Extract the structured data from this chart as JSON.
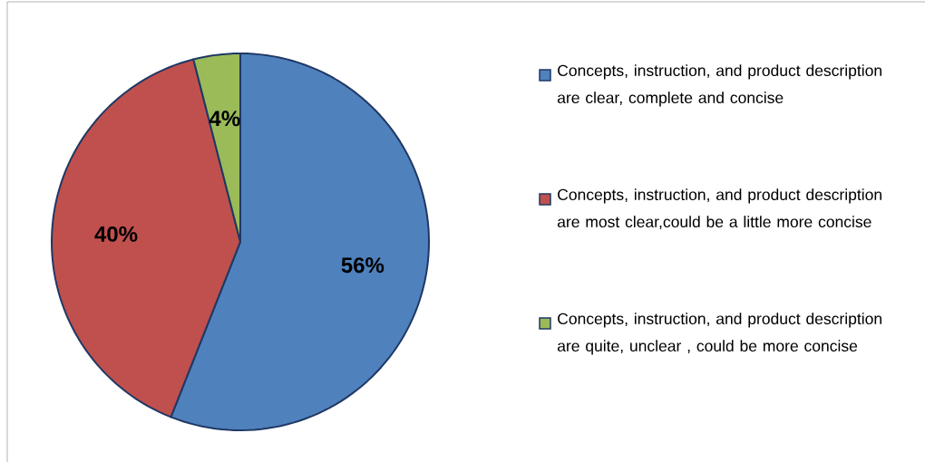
{
  "chart_data": {
    "type": "pie",
    "categories": [
      "Concepts, instruction, and product description are clear, complete and concise",
      "Concepts, instruction, and product description are most clear,could be a little more concise",
      "Concepts, instruction, and product description are quite, unclear , could be more concise"
    ],
    "values": [
      56,
      40,
      4
    ],
    "colors": [
      "#4f81bd",
      "#c0504d",
      "#9bbb59"
    ],
    "value_labels": [
      "56%",
      "40%",
      "4%"
    ],
    "legend": "right"
  }
}
